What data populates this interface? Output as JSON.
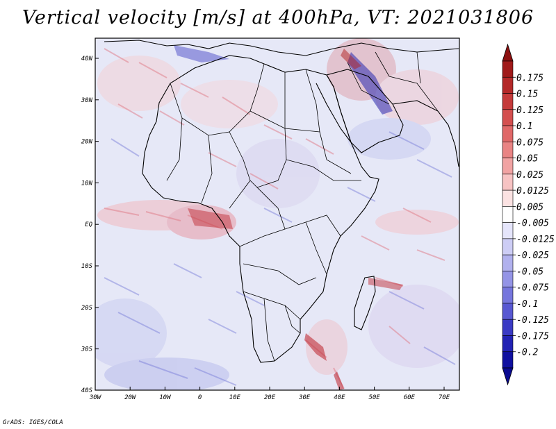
{
  "title": "Vertical velocity [m/s] at 400hPa, VT: 2021031806",
  "credit": "GrADS: IGES/COLA",
  "map": {
    "lat_ticks": [
      "40N",
      "30N",
      "20N",
      "10N",
      "EQ",
      "10S",
      "20S",
      "30S",
      "40S"
    ],
    "lon_ticks": [
      "30W",
      "20W",
      "10W",
      "0",
      "10E",
      "20E",
      "30E",
      "40E",
      "50E",
      "60E",
      "70E"
    ],
    "background_color": "#e6e8f7"
  },
  "colorbar": {
    "labels": [
      "0.175",
      "0.15",
      "0.125",
      "0.1",
      "0.075",
      "0.05",
      "0.025",
      "0.0125",
      "0.005",
      "-0.005",
      "-0.0125",
      "-0.025",
      "-0.05",
      "-0.075",
      "-0.1",
      "-0.125",
      "-0.175",
      "-0.2"
    ],
    "colors": [
      "#a01a1a",
      "#b42828",
      "#c53a3a",
      "#d44f4f",
      "#e06868",
      "#e98484",
      "#f1a3a3",
      "#f7c3c3",
      "#fbe2e2",
      "#ffffff",
      "#e5e5fb",
      "#cdcdf5",
      "#b1b1ee",
      "#9494e6",
      "#7676dd",
      "#5858d2",
      "#3a3ac4",
      "#2222b4",
      "#1010a0"
    ],
    "top_triangle_color": "#8c1010",
    "bottom_triangle_color": "#0a0a90"
  }
}
